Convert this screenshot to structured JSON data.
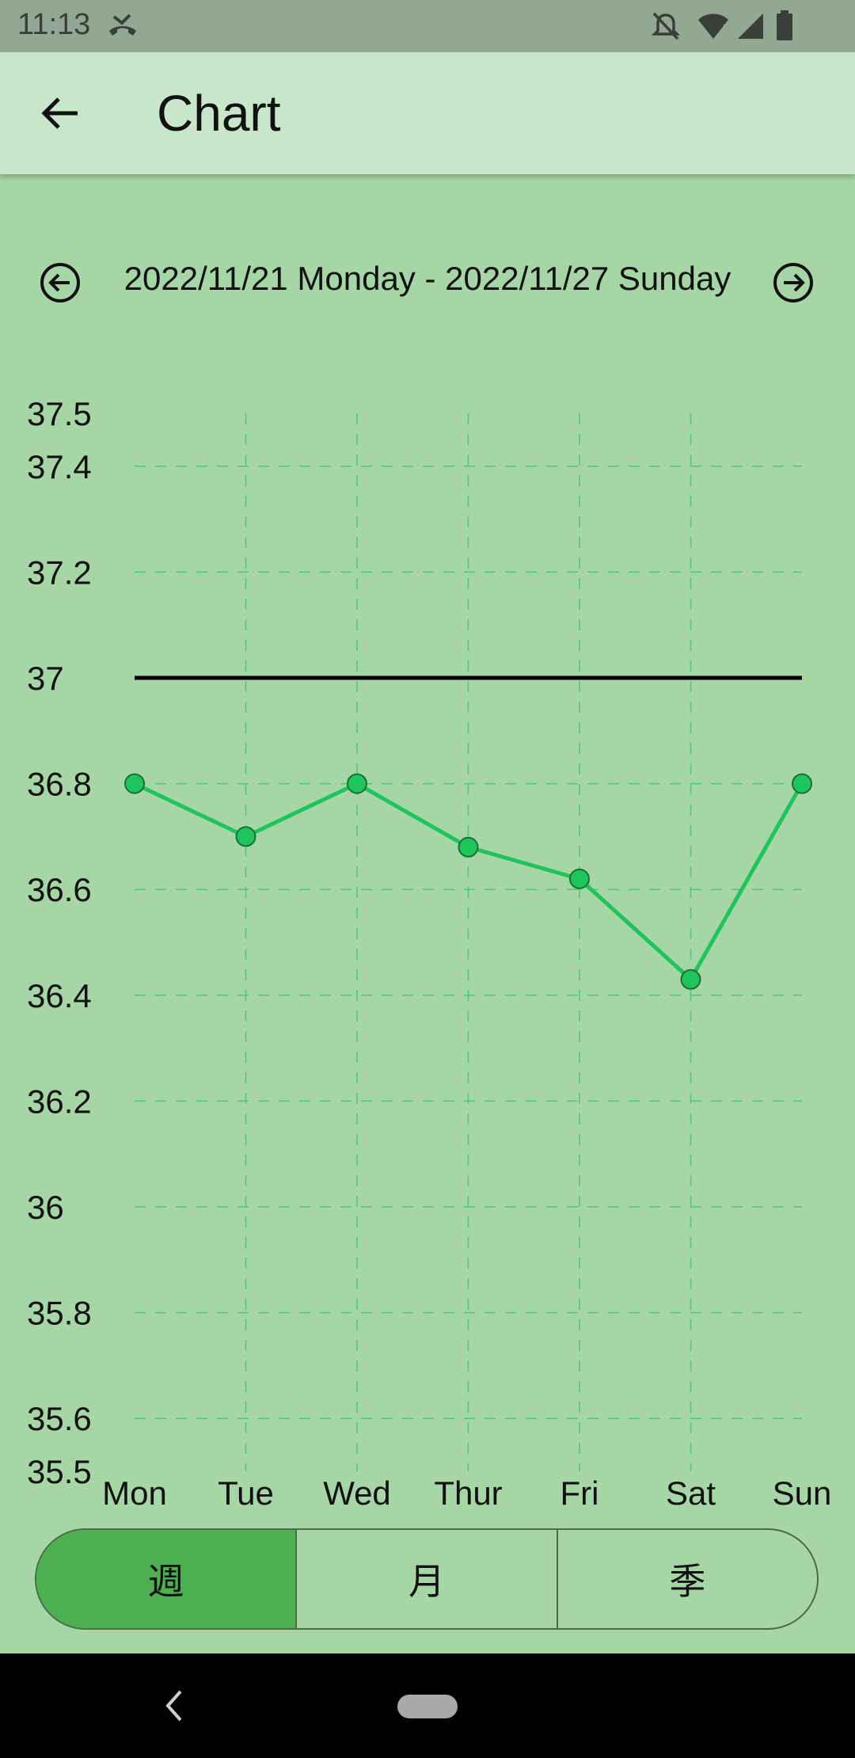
{
  "status_bar": {
    "time": "11:13",
    "icons": [
      "missed-call-icon",
      "mute-icon",
      "wifi-icon",
      "signal-icon",
      "battery-icon"
    ]
  },
  "app_bar": {
    "back_icon": "arrow-left-icon",
    "title": "Chart"
  },
  "range": {
    "prev_icon": "arrow-left-circle-icon",
    "text": "2022/11/21 Monday - 2022/11/27 Sunday",
    "next_icon": "arrow-right-circle-icon"
  },
  "chart_data": {
    "type": "line",
    "categories": [
      "Mon",
      "Tue",
      "Wed",
      "Thur",
      "Fri",
      "Sat",
      "Sun"
    ],
    "series": [
      {
        "values": [
          36.8,
          36.7,
          36.8,
          36.68,
          36.62,
          36.43,
          36.8
        ],
        "color": "#1fc45a"
      }
    ],
    "reference_line": {
      "value": 37,
      "color": "#000000"
    },
    "ylim": [
      35.5,
      37.5
    ],
    "yticks": [
      "35.5",
      "35.6",
      "35.8",
      "36",
      "36.2",
      "36.4",
      "36.6",
      "36.8",
      "37",
      "37.2",
      "37.4",
      "37.5"
    ],
    "grid": true,
    "grid_color": "#2fc765"
  },
  "segments": {
    "items": [
      "週",
      "月",
      "季"
    ],
    "active_index": 0
  },
  "nav_bar": {
    "back_icon": "nav-back-icon",
    "home_icon": "nav-home-pill-icon"
  },
  "colors": {
    "background": "#a6d6a5",
    "app_bar": "#c8e6c9",
    "status_bar": "#93a893",
    "active_segment": "#4caf50"
  }
}
